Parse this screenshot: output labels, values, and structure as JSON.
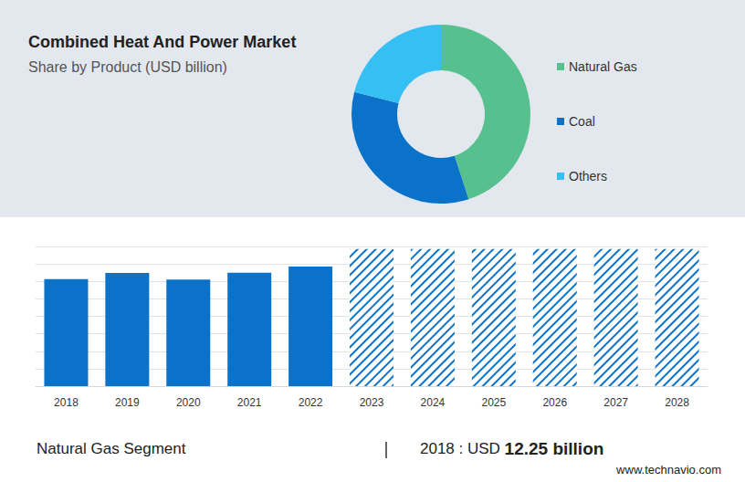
{
  "chart_data": [
    {
      "type": "pie",
      "title": "Combined Heat And Power Market",
      "subtitle": "Share by Product (USD billion)",
      "categories": [
        "Natural Gas",
        "Coal",
        "Others"
      ],
      "values": [
        45,
        34,
        21
      ],
      "colors": [
        "#56c08f",
        "#0a72c9",
        "#36bff3"
      ],
      "legend": "right"
    },
    {
      "type": "bar",
      "categories": [
        "2018",
        "2019",
        "2020",
        "2021",
        "2022",
        "2023",
        "2024",
        "2025",
        "2026",
        "2027",
        "2028"
      ],
      "series": [
        {
          "values": [
            12.25,
            12.98,
            12.2,
            13.0,
            13.7,
            null,
            null,
            null,
            null,
            null,
            null
          ],
          "color": "#0a72c9"
        },
        {
          "values": [
            null,
            null,
            null,
            null,
            null,
            15.7,
            15.7,
            15.7,
            15.7,
            15.7,
            15.7
          ],
          "color": "#0a72c9",
          "line_style": "hatched"
        }
      ],
      "ylim": [
        0,
        16
      ],
      "yticks": [
        0,
        2,
        4,
        6,
        8,
        10,
        12,
        14,
        16
      ],
      "grid": true,
      "stacked": true,
      "tick_labels": "x"
    }
  ],
  "footer": {
    "segment": "Natural Gas Segment",
    "year_text": "2018 : USD",
    "value_text": "12.25 billion"
  },
  "source": "www.technavio.com"
}
